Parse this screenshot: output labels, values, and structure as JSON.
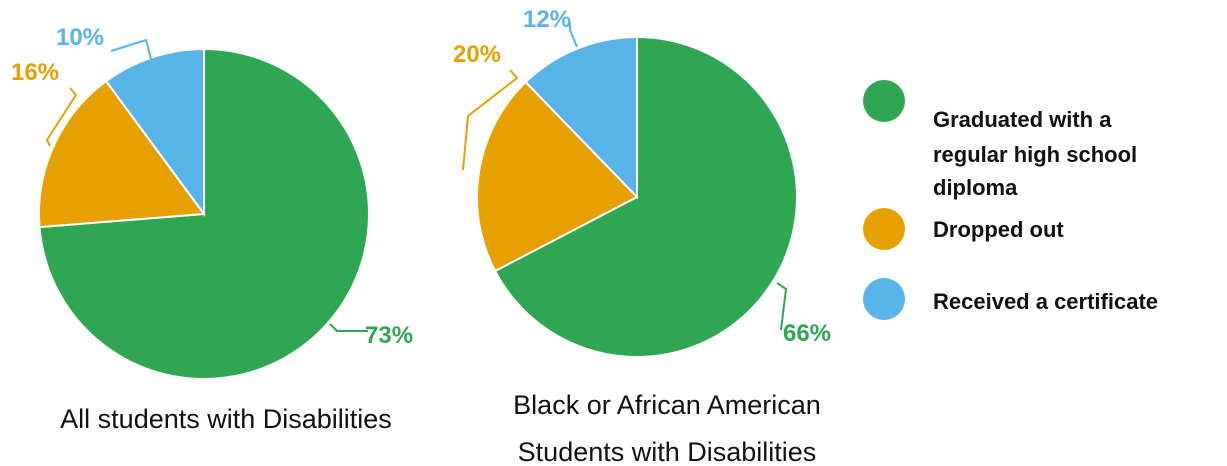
{
  "colors": {
    "graduated": "#2ea652",
    "dropped": "#e6a100",
    "certificate": "#58b4e8"
  },
  "legend": {
    "items": [
      {
        "key": "graduated",
        "lines": [
          "Graduated with a",
          "regular high school",
          "diploma"
        ]
      },
      {
        "key": "dropped",
        "lines": [
          "Dropped out"
        ]
      },
      {
        "key": "certificate",
        "lines": [
          "Received a certificate"
        ]
      }
    ]
  },
  "chart_data": [
    {
      "type": "pie",
      "caption_lines": [
        "All students with Disabilities"
      ],
      "slices": [
        {
          "key": "graduated",
          "value": 73,
          "label": "73%"
        },
        {
          "key": "dropped",
          "value": 16,
          "label": "16%"
        },
        {
          "key": "certificate",
          "value": 10,
          "label": "10%"
        }
      ]
    },
    {
      "type": "pie",
      "caption_lines": [
        "Black or African American",
        "Students with Disabilities"
      ],
      "slices": [
        {
          "key": "graduated",
          "value": 66,
          "label": "66%"
        },
        {
          "key": "dropped",
          "value": 20,
          "label": "20%"
        },
        {
          "key": "certificate",
          "value": 12,
          "label": "12%"
        }
      ]
    }
  ]
}
